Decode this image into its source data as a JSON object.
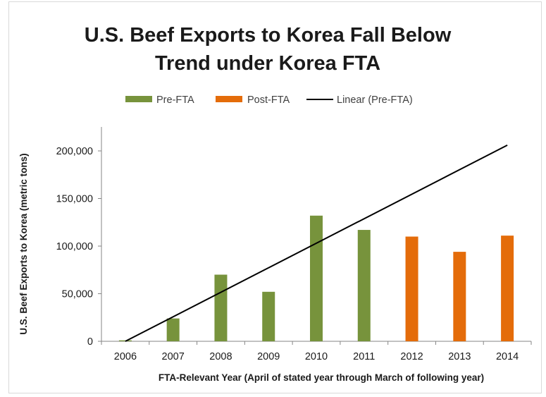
{
  "chart_data": {
    "type": "bar",
    "title_lines": [
      "U.S. Beef Exports to Korea Fall Below",
      "Trend under Korea FTA"
    ],
    "xlabel": "FTA-Relevant Year (April of stated year through March of following year)",
    "ylabel": "U.S. Beef Exports to Korea (metric tons)",
    "ylim": [
      0,
      200000
    ],
    "yticks": [
      "0",
      "50,000",
      "100,000",
      "150,000",
      "200,000"
    ],
    "categories": [
      "2006",
      "2007",
      "2008",
      "2009",
      "2010",
      "2011",
      "2012",
      "2013",
      "2014"
    ],
    "series": [
      {
        "name": "Pre-FTA",
        "color": "#77933c",
        "values": [
          1000,
          24000,
          70000,
          52000,
          132000,
          117000,
          null,
          null,
          null
        ]
      },
      {
        "name": "Post-FTA",
        "color": "#e46c0a",
        "values": [
          null,
          null,
          null,
          null,
          null,
          null,
          110000,
          94000,
          111000
        ]
      }
    ],
    "trendline": {
      "name": "Linear (Pre-FTA)",
      "color": "#000000",
      "start": {
        "x": "2006",
        "y": 0
      },
      "end": {
        "x": "2014",
        "y": 206000
      }
    },
    "legend_position": "top",
    "grid": false
  }
}
